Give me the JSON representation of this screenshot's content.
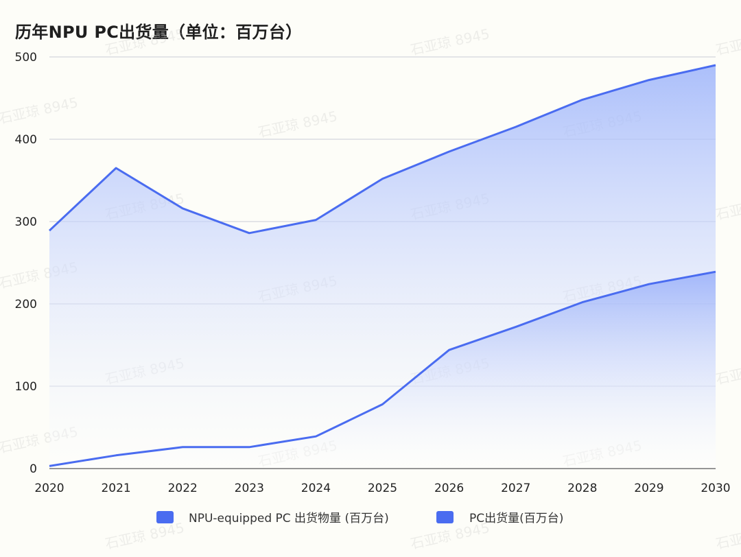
{
  "chart_data": {
    "type": "area",
    "title": "历年NPU PC出货量（单位：百万台）",
    "x": [
      2020,
      2021,
      2022,
      2023,
      2024,
      2025,
      2026,
      2027,
      2028,
      2029,
      2030
    ],
    "ylim": [
      0,
      500
    ],
    "yticks": [
      0,
      100,
      200,
      300,
      400,
      500
    ],
    "grid": true,
    "legend_position": "bottom-center",
    "series": [
      {
        "name": "NPU-equipped PC 出货物量 (百万台)",
        "color": "#4a6cf0",
        "values": [
          3,
          16,
          26,
          26,
          39,
          78,
          144,
          172,
          202,
          224,
          239
        ]
      },
      {
        "name": "PC出货量(百万台)",
        "color": "#4a6cf0",
        "values": [
          289,
          365,
          316,
          286,
          302,
          352,
          385,
          415,
          448,
          472,
          490
        ]
      }
    ]
  },
  "watermark_text": "石亚琼 8945"
}
